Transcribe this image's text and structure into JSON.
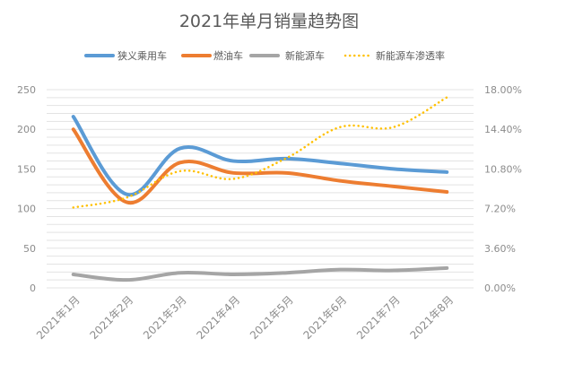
{
  "chart_data": {
    "type": "line",
    "title": "2021年单月销量趋势图",
    "categories": [
      "2021年1月",
      "2021年2月",
      "2021年3月",
      "2021年4月",
      "2021年5月",
      "2021年6月",
      "2021年7月",
      "2021年8月"
    ],
    "series": [
      {
        "name": "狭义乘用车",
        "axis": "left",
        "color": "#5b9bd5",
        "style": "solid",
        "values": [
          216,
          118,
          176,
          160,
          163,
          157,
          150,
          146
        ]
      },
      {
        "name": "燃油车",
        "axis": "left",
        "color": "#ed7d31",
        "style": "solid",
        "values": [
          200,
          108,
          158,
          145,
          145,
          135,
          128,
          121
        ]
      },
      {
        "name": "新能源车",
        "axis": "left",
        "color": "#a5a5a5",
        "style": "solid",
        "values": [
          17,
          10,
          19,
          17,
          19,
          23,
          22,
          25
        ]
      },
      {
        "name": "新能源车渗透率",
        "axis": "right",
        "color": "#ffc000",
        "style": "dotted",
        "values": [
          7.3,
          8.2,
          10.6,
          9.9,
          11.8,
          14.6,
          14.6,
          17.3
        ]
      }
    ],
    "y_left": {
      "min": 0,
      "max": 250,
      "ticks": [
        "0",
        "50",
        "100",
        "150",
        "200",
        "250"
      ],
      "tick_values": [
        0,
        50,
        100,
        150,
        200,
        250
      ]
    },
    "y_right": {
      "min": 0,
      "max": 18,
      "ticks": [
        "0.00%",
        "3.60%",
        "7.20%",
        "10.80%",
        "14.40%",
        "18.00%"
      ],
      "tick_values": [
        0,
        3.6,
        7.2,
        10.8,
        14.4,
        18
      ]
    },
    "grid": true,
    "legend": "top"
  }
}
